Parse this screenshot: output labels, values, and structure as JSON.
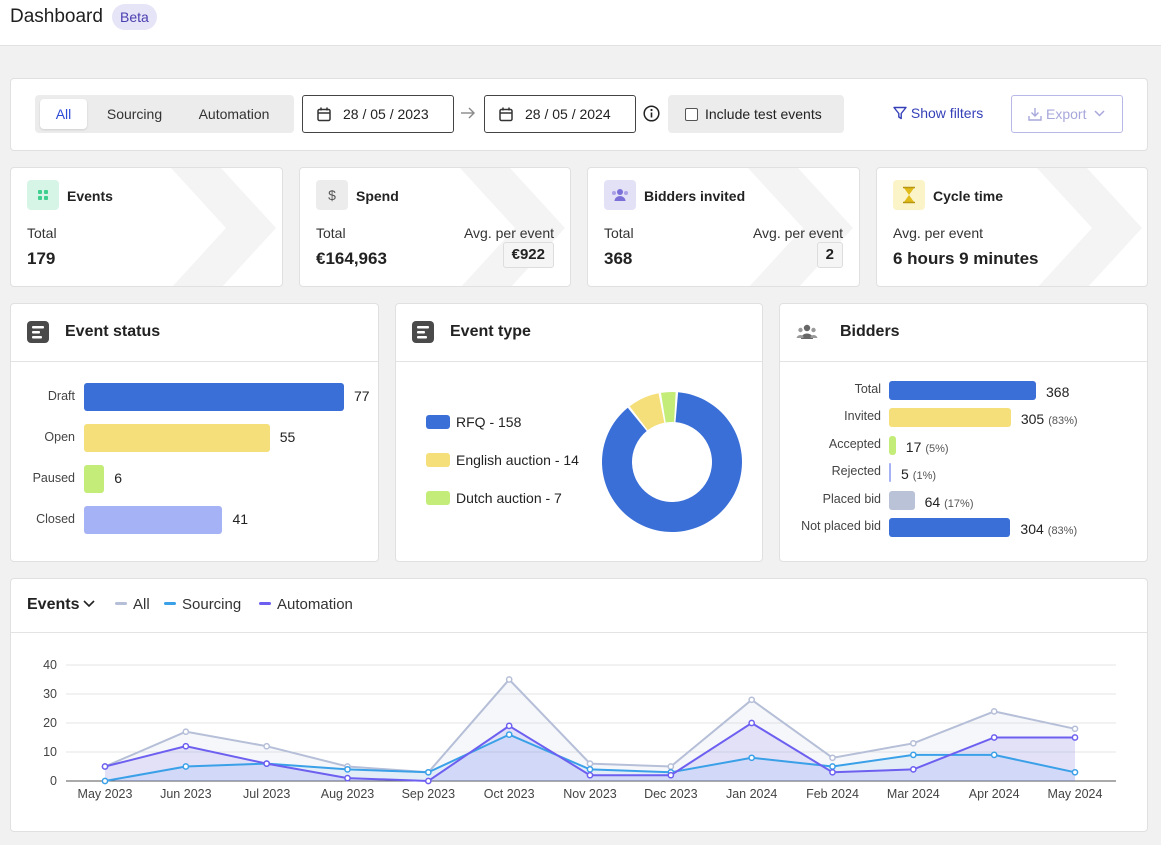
{
  "header": {
    "title": "Dashboard",
    "badge": "Beta"
  },
  "filters": {
    "tabs": [
      {
        "label": "All",
        "active": true
      },
      {
        "label": "Sourcing"
      },
      {
        "label": "Automation"
      }
    ],
    "date_from": "28 / 05 / 2023",
    "date_to": "28 / 05 / 2024",
    "include_test_events": "Include test events",
    "show_filters": "Show filters",
    "export": "Export"
  },
  "stats": {
    "events": {
      "title": "Events",
      "k1": "Total",
      "v1": "179",
      "icon": "grid-icon",
      "color": "#d6f5e6"
    },
    "spend": {
      "title": "Spend",
      "k1": "Total",
      "v1": "€164,963",
      "k2": "Avg. per event",
      "v2": "€922",
      "icon": "dollar-icon",
      "color": "#ececec"
    },
    "bidders": {
      "title": "Bidders invited",
      "k1": "Total",
      "v1": "368",
      "k2": "Avg. per event",
      "v2": "2",
      "icon": "people-icon",
      "color": "#e3e1f6"
    },
    "cycle": {
      "title": "Cycle time",
      "k1": "Avg. per event",
      "v1": "6 hours 9 minutes",
      "icon": "hourglass-icon",
      "color": "#fbf4c8"
    }
  },
  "event_status": {
    "title": "Event status",
    "rows": [
      {
        "label": "Draft",
        "value": "77",
        "color": "#3b6fd8"
      },
      {
        "label": "Open",
        "value": "55",
        "color": "#f5df7a"
      },
      {
        "label": "Paused",
        "value": "6",
        "color": "#c3ec78"
      },
      {
        "label": "Closed",
        "value": "41",
        "color": "#a6b2f6"
      }
    ]
  },
  "event_type": {
    "title": "Event type",
    "legend": [
      {
        "label": "RFQ - 158",
        "color": "#3b6fd8"
      },
      {
        "label": "English auction - 14",
        "color": "#f5df7a"
      },
      {
        "label": "Dutch auction - 7",
        "color": "#c3ec78"
      }
    ]
  },
  "bidders_panel": {
    "title": "Bidders",
    "rows": [
      {
        "label": "Total",
        "value": "368",
        "pct": "",
        "color": "#3b6fd8"
      },
      {
        "label": "Invited",
        "value": "305",
        "pct": "(83%)",
        "color": "#f5df7a"
      },
      {
        "label": "Accepted",
        "value": "17",
        "pct": "(5%)",
        "color": "#c3ec78"
      },
      {
        "label": "Rejected",
        "value": "5",
        "pct": "(1%)",
        "color": "#a6b2f6"
      },
      {
        "label": "Placed bid",
        "value": "64",
        "pct": "(17%)",
        "color": "#b9c2d6"
      },
      {
        "label": "Not placed bid",
        "value": "304",
        "pct": "(83%)",
        "color": "#3b6fd8"
      }
    ]
  },
  "events_chart": {
    "title": "Events",
    "legend": [
      {
        "name": "All",
        "color": "#b6bfd8"
      },
      {
        "name": "Sourcing",
        "color": "#3aa0e8"
      },
      {
        "name": "Automation",
        "color": "#6d5ff0"
      }
    ]
  },
  "chart_data": [
    {
      "type": "bar",
      "title": "Event status",
      "orientation": "horizontal",
      "categories": [
        "Draft",
        "Open",
        "Paused",
        "Closed"
      ],
      "values": [
        77,
        55,
        6,
        41
      ]
    },
    {
      "type": "pie",
      "title": "Event type",
      "donut": true,
      "categories": [
        "RFQ",
        "English auction",
        "Dutch auction"
      ],
      "values": [
        158,
        14,
        7
      ]
    },
    {
      "type": "bar",
      "title": "Bidders",
      "orientation": "horizontal",
      "categories": [
        "Total",
        "Invited",
        "Accepted",
        "Rejected",
        "Placed bid",
        "Not placed bid"
      ],
      "values": [
        368,
        305,
        17,
        5,
        64,
        304
      ]
    },
    {
      "type": "line",
      "title": "Events",
      "categories": [
        "May 2023",
        "Jun 2023",
        "Jul 2023",
        "Aug 2023",
        "Sep 2023",
        "Oct 2023",
        "Nov 2023",
        "Dec 2023",
        "Jan 2024",
        "Feb 2024",
        "Mar 2024",
        "Apr 2024",
        "May 2024"
      ],
      "series": [
        {
          "name": "All",
          "values": [
            5,
            17,
            12,
            5,
            3,
            35,
            6,
            5,
            28,
            8,
            13,
            24,
            18
          ]
        },
        {
          "name": "Sourcing",
          "values": [
            0,
            5,
            6,
            4,
            3,
            16,
            4,
            3,
            8,
            5,
            9,
            9,
            3
          ]
        },
        {
          "name": "Automation",
          "values": [
            5,
            12,
            6,
            1,
            0,
            19,
            2,
            2,
            20,
            3,
            4,
            15,
            15
          ]
        }
      ],
      "yticks": [
        0,
        10,
        20,
        30,
        40
      ],
      "ylim": [
        0,
        40
      ],
      "grid": true,
      "legend": "top-left"
    }
  ]
}
